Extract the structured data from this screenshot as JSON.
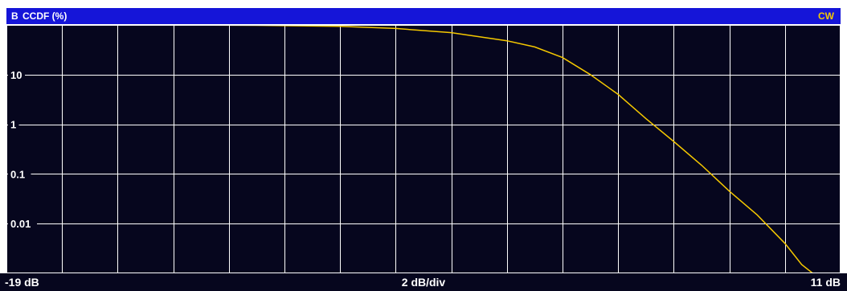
{
  "header": {
    "trace_label": "B",
    "title": "CCDF (%)",
    "trace_mode": "CW"
  },
  "footer": {
    "x_start": "-19 dB",
    "x_scale": "2 dB/div",
    "x_stop": "11 dB"
  },
  "colors": {
    "header_bg": "#1515d8",
    "plot_bg": "#06061e",
    "grid": "#ffffff",
    "trace": "#f5c800",
    "trace_mode_text": "#f5c800"
  },
  "chart_data": {
    "type": "line",
    "title": "CCDF (%)",
    "xlabel": "",
    "ylabel": "",
    "x_unit": "dB",
    "x_scale": "log",
    "xlim": [
      -19,
      11
    ],
    "x_grid_step": 2,
    "y_scale": "log",
    "ylim": [
      0.001,
      100
    ],
    "y_ticks": [
      10,
      1,
      0.1,
      0.01
    ],
    "y_tick_labels": [
      "10",
      "1",
      "0.1",
      "0.01"
    ],
    "grid": true,
    "legend": "none",
    "series": [
      {
        "values": [
          {
            "x": -19,
            "y": 100
          },
          {
            "x": -16,
            "y": 99.9
          },
          {
            "x": -13,
            "y": 99.5
          },
          {
            "x": -10,
            "y": 98
          },
          {
            "x": -7,
            "y": 94
          },
          {
            "x": -5,
            "y": 85
          },
          {
            "x": -3,
            "y": 70
          },
          {
            "x": -1,
            "y": 48
          },
          {
            "x": 0,
            "y": 36
          },
          {
            "x": 1,
            "y": 22
          },
          {
            "x": 2,
            "y": 10
          },
          {
            "x": 3,
            "y": 4
          },
          {
            "x": 4,
            "y": 1.3
          },
          {
            "x": 5,
            "y": 0.45
          },
          {
            "x": 6,
            "y": 0.15
          },
          {
            "x": 7,
            "y": 0.045
          },
          {
            "x": 8,
            "y": 0.015
          },
          {
            "x": 9,
            "y": 0.004
          },
          {
            "x": 9.6,
            "y": 0.0015
          },
          {
            "x": 10,
            "y": 0.001
          }
        ]
      }
    ]
  }
}
